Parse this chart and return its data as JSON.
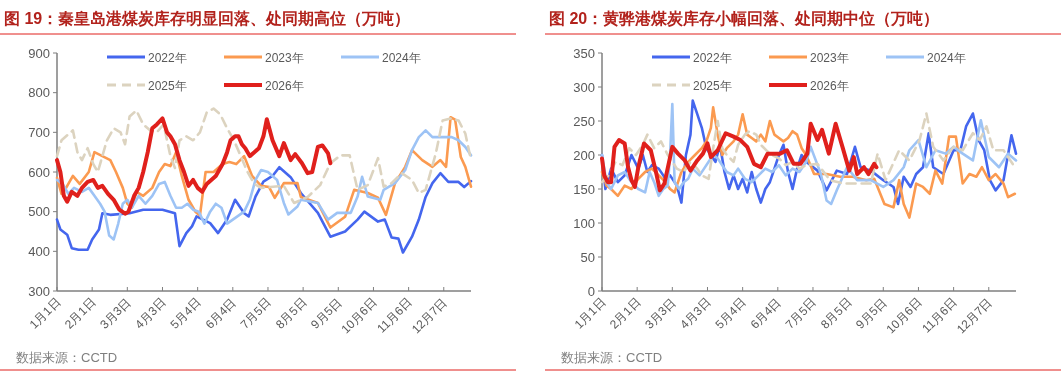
{
  "chart_data": [
    {
      "type": "line",
      "title": "图 19：秦皇岛港煤炭库存明显回落、处同期高位（万吨）",
      "annotations": [
        "数据来源：CCTD"
      ],
      "legend": "top",
      "grid": false,
      "xlim": [
        "--01-01",
        "--12-31"
      ],
      "xticks": [
        {
          "value": "--01-01",
          "label": "1月1日"
        },
        {
          "value": "--02-01",
          "label": "2月1日"
        },
        {
          "value": "--03-03",
          "label": "3月3日"
        },
        {
          "value": "--04-03",
          "label": "4月3日"
        },
        {
          "value": "--05-04",
          "label": "5月4日"
        },
        {
          "value": "--06-04",
          "label": "6月4日"
        },
        {
          "value": "--07-05",
          "label": "7月5日"
        },
        {
          "value": "--08-05",
          "label": "8月5日"
        },
        {
          "value": "--09-05",
          "label": "9月5日"
        },
        {
          "value": "--10-06",
          "label": "10月6日"
        },
        {
          "value": "--11-06",
          "label": "11月6日"
        },
        {
          "value": "--12-07",
          "label": "12月7日"
        }
      ],
      "ylim": [
        300,
        900
      ],
      "yticks": [
        300,
        400,
        500,
        600,
        700,
        800,
        900
      ],
      "series": [
        {
          "name": "2022年",
          "color": "#4466ee",
          "x": [
            "--01-01",
            "--01-04",
            "--01-10",
            "--01-14",
            "--01-20",
            "--01-28",
            "--02-01",
            "--02-07",
            "--02-10",
            "--02-17",
            "--03-05",
            "--03-17",
            "--04-03",
            "--04-14",
            "--04-18",
            "--04-24",
            "--04-29",
            "--05-03",
            "--05-15",
            "--05-22",
            "--05-30",
            "--06-06",
            "--06-14",
            "--06-18",
            "--06-24",
            "--07-01",
            "--07-09",
            "--07-15",
            "--07-25",
            "--08-03",
            "--08-18",
            "--08-29",
            "--09-11",
            "--09-22",
            "--09-28",
            "--10-10",
            "--10-16",
            "--10-22",
            "--10-28",
            "--11-01",
            "--11-09",
            "--11-15",
            "--11-21",
            "--11-27",
            "--12-04",
            "--12-11",
            "--12-20",
            "--12-25",
            "--12-31"
          ],
          "values": [
            480,
            455,
            442,
            408,
            404,
            404,
            430,
            455,
            496,
            492,
            496,
            505,
            505,
            496,
            413,
            446,
            463,
            488,
            471,
            446,
            480,
            530,
            496,
            488,
            538,
            576,
            590,
            612,
            587,
            547,
            497,
            437,
            450,
            480,
            500,
            475,
            480,
            435,
            432,
            397,
            437,
            480,
            537,
            572,
            597,
            575,
            575,
            562,
            577
          ]
        },
        {
          "name": "2023年",
          "color": "#fb9a50",
          "x": [
            "--01-01",
            "--01-05",
            "--01-09",
            "--01-15",
            "--01-21",
            "--01-29",
            "--02-03",
            "--02-10",
            "--02-17",
            "--02-22",
            "--02-28",
            "--03-03",
            "--03-07",
            "--03-11",
            "--03-17",
            "--03-25",
            "--03-31",
            "--04-05",
            "--04-10",
            "--04-15",
            "--04-20",
            "--04-26",
            "--05-02",
            "--05-06",
            "--05-11",
            "--05-18",
            "--05-26",
            "--06-01",
            "--06-07",
            "--06-14",
            "--06-21",
            "--06-29",
            "--07-06",
            "--07-11",
            "--07-19",
            "--07-31",
            "--08-03",
            "--08-18",
            "--08-29",
            "--09-11",
            "--09-19",
            "--10-01",
            "--10-10",
            "--10-17",
            "--10-25",
            "--11-03",
            "--11-09",
            "--11-18",
            "--11-27",
            "--12-04",
            "--12-09",
            "--12-13",
            "--12-17",
            "--12-22",
            "--12-26",
            "--12-31"
          ],
          "values": [
            585,
            545,
            560,
            590,
            570,
            600,
            650,
            640,
            630,
            600,
            560,
            520,
            510,
            550,
            540,
            560,
            600,
            620,
            615,
            650,
            590,
            530,
            500,
            490,
            600,
            600,
            620,
            625,
            620,
            640,
            590,
            565,
            562,
            535,
            572,
            572,
            537,
            522,
            460,
            487,
            555,
            547,
            535,
            492,
            572,
            613,
            655,
            630,
            613,
            630,
            613,
            738,
            732,
            638,
            613,
            563
          ]
        },
        {
          "name": "2024年",
          "color": "#9dc3f5",
          "x": [
            "--01-01",
            "--01-06",
            "--01-11",
            "--01-16",
            "--01-23",
            "--01-29",
            "--02-03",
            "--02-08",
            "--02-12",
            "--02-16",
            "--02-20",
            "--02-24",
            "--02-28",
            "--03-03",
            "--03-07",
            "--03-13",
            "--03-19",
            "--03-25",
            "--03-31",
            "--04-05",
            "--04-10",
            "--04-15",
            "--04-20",
            "--04-25",
            "--04-30",
            "--05-05",
            "--05-10",
            "--05-15",
            "--05-20",
            "--05-25",
            "--05-30",
            "--06-04",
            "--06-09",
            "--06-14",
            "--06-19",
            "--06-24",
            "--06-29",
            "--07-05",
            "--07-13",
            "--07-19",
            "--07-23",
            "--07-31",
            "--08-03",
            "--08-18",
            "--08-27",
            "--09-04",
            "--09-16",
            "--09-22",
            "--09-26",
            "--10-01",
            "--10-12",
            "--10-15",
            "--10-25",
            "--11-03",
            "--11-09",
            "--11-15",
            "--11-21",
            "--11-27",
            "--12-05",
            "--12-14",
            "--12-20",
            "--12-26",
            "--12-31"
          ],
          "values": [
            580,
            570,
            545,
            560,
            550,
            560,
            540,
            520,
            500,
            440,
            430,
            470,
            520,
            530,
            510,
            540,
            520,
            540,
            570,
            575,
            540,
            510,
            510,
            520,
            505,
            500,
            470,
            500,
            520,
            510,
            470,
            480,
            490,
            500,
            530,
            580,
            605,
            600,
            580,
            522,
            493,
            513,
            530,
            522,
            480,
            497,
            497,
            538,
            588,
            538,
            530,
            555,
            572,
            605,
            655,
            688,
            705,
            688,
            688,
            688,
            680,
            663,
            642
          ]
        },
        {
          "name": "2025年",
          "color": "#dcd3bf",
          "line_style": "dashed",
          "x": [
            "--01-01",
            "--01-05",
            "--01-09",
            "--01-15",
            "--01-19",
            "--01-23",
            "--01-28",
            "--02-02",
            "--02-06",
            "--02-10",
            "--02-14",
            "--02-20",
            "--02-26",
            "--03-01",
            "--03-05",
            "--03-11",
            "--03-17",
            "--03-23",
            "--03-29",
            "--04-04",
            "--04-10",
            "--04-14",
            "--04-18",
            "--04-24",
            "--04-30",
            "--05-06",
            "--05-12",
            "--05-18",
            "--05-24",
            "--05-30",
            "--06-05",
            "--06-11",
            "--06-17",
            "--06-23",
            "--06-29",
            "--07-07",
            "--07-19",
            "--07-28",
            "--08-09",
            "--08-20",
            "--08-29",
            "--09-07",
            "--09-15",
            "--09-22",
            "--10-01",
            "--10-10",
            "--10-15",
            "--10-22",
            "--10-31",
            "--11-09",
            "--11-15",
            "--11-21",
            "--11-30",
            "--12-06",
            "--12-13",
            "--12-20",
            "--12-26",
            "--12-31"
          ],
          "values": [
            640,
            680,
            690,
            705,
            650,
            630,
            660,
            620,
            600,
            640,
            680,
            710,
            700,
            670,
            740,
            755,
            720,
            705,
            700,
            720,
            640,
            610,
            680,
            690,
            680,
            700,
            750,
            760,
            745,
            710,
            680,
            640,
            600,
            570,
            560,
            562,
            565,
            522,
            537,
            567,
            622,
            642,
            642,
            555,
            567,
            635,
            563,
            572,
            597,
            580,
            547,
            555,
            647,
            730,
            735,
            730,
            697,
            630
          ]
        },
        {
          "name": "2026年",
          "color": "#e0201c",
          "x": [
            "--01-01",
            "--01-04",
            "--01-07",
            "--01-10",
            "--01-14",
            "--01-19",
            "--01-23",
            "--01-28",
            "--02-02",
            "--02-06",
            "--02-10",
            "--02-15",
            "--02-20",
            "--02-25",
            "--03-01",
            "--03-04",
            "--03-09",
            "--03-13",
            "--03-17",
            "--03-21",
            "--03-25",
            "--03-29",
            "--04-03",
            "--04-07",
            "--04-10",
            "--04-14",
            "--04-18",
            "--04-22",
            "--04-26",
            "--04-30",
            "--05-04",
            "--05-08",
            "--05-12",
            "--05-16",
            "--05-20",
            "--05-26",
            "--05-30",
            "--06-02",
            "--06-06",
            "--06-09",
            "--06-12",
            "--06-15",
            "--06-19",
            "--06-23",
            "--06-27",
            "--07-01",
            "--07-04",
            "--07-09",
            "--07-15",
            "--07-19",
            "--07-25",
            "--07-29",
            "--08-04",
            "--08-09",
            "--08-13",
            "--08-18",
            "--08-22",
            "--08-27",
            "--08-29"
          ],
          "values": [
            630,
            600,
            540,
            525,
            550,
            540,
            560,
            575,
            580,
            560,
            565,
            545,
            530,
            505,
            495,
            500,
            540,
            560,
            600,
            650,
            710,
            720,
            735,
            700,
            690,
            670,
            630,
            600,
            565,
            580,
            560,
            550,
            570,
            580,
            590,
            620,
            650,
            680,
            690,
            690,
            670,
            660,
            640,
            650,
            660,
            690,
            733,
            680,
            640,
            673,
            630,
            645,
            622,
            597,
            600,
            663,
            667,
            647,
            622
          ]
        }
      ]
    },
    {
      "type": "line",
      "title": "图 20：黄骅港煤炭库存小幅回落、处同期中位（万吨）",
      "annotations": [
        "数据来源：CCTD"
      ],
      "legend": "top",
      "grid": false,
      "xlim": [
        "--01-01",
        "--12-31"
      ],
      "xticks": [
        {
          "value": "--01-01",
          "label": "1月1日"
        },
        {
          "value": "--02-01",
          "label": "2月1日"
        },
        {
          "value": "--03-03",
          "label": "3月3日"
        },
        {
          "value": "--04-03",
          "label": "4月3日"
        },
        {
          "value": "--05-04",
          "label": "5月4日"
        },
        {
          "value": "--06-04",
          "label": "6月4日"
        },
        {
          "value": "--07-05",
          "label": "7月5日"
        },
        {
          "value": "--08-05",
          "label": "8月5日"
        },
        {
          "value": "--09-05",
          "label": "9月5日"
        },
        {
          "value": "--10-06",
          "label": "10月6日"
        },
        {
          "value": "--11-06",
          "label": "11月6日"
        },
        {
          "value": "--12-07",
          "label": "12月7日"
        }
      ],
      "ylim": [
        0,
        350
      ],
      "yticks": [
        0,
        50,
        100,
        150,
        200,
        250,
        300,
        350
      ],
      "series": [
        {
          "name": "2022年",
          "color": "#4466ee",
          "x": [
            "--01-01",
            "--01-04",
            "--01-09",
            "--01-15",
            "--01-21",
            "--01-27",
            "--02-02",
            "--02-06",
            "--02-10",
            "--02-14",
            "--02-20",
            "--02-26",
            "--03-01",
            "--03-07",
            "--03-11",
            "--03-15",
            "--03-19",
            "--03-21",
            "--03-25",
            "--03-29",
            "--04-02",
            "--04-06",
            "--04-10",
            "--04-14",
            "--04-18",
            "--04-22",
            "--04-26",
            "--04-30",
            "--05-04",
            "--05-08",
            "--05-12",
            "--05-16",
            "--05-20",
            "--05-24",
            "--05-28",
            "--06-01",
            "--06-05",
            "--06-09",
            "--06-13",
            "--06-17",
            "--06-21",
            "--06-25",
            "--06-29",
            "--07-09",
            "--07-17",
            "--07-26",
            "--08-04",
            "--08-11",
            "--08-16",
            "--08-25",
            "--09-05",
            "--09-14",
            "--09-18",
            "--09-23",
            "--09-29",
            "--10-04",
            "--10-10",
            "--10-15",
            "--10-19",
            "--10-28",
            "--11-06",
            "--11-12",
            "--11-17",
            "--11-23",
            "--11-28",
            "--12-03",
            "--12-08",
            "--12-13",
            "--12-20",
            "--12-27",
            "--12-31"
          ],
          "values": [
            200,
            150,
            180,
            160,
            170,
            200,
            180,
            200,
            175,
            185,
            180,
            165,
            170,
            155,
            130,
            200,
            230,
            280,
            260,
            240,
            210,
            200,
            190,
            215,
            175,
            150,
            170,
            150,
            165,
            145,
            175,
            150,
            130,
            150,
            160,
            180,
            200,
            215,
            175,
            150,
            180,
            200,
            190,
            177,
            148,
            177,
            172,
            212,
            182,
            177,
            163,
            153,
            128,
            168,
            153,
            172,
            182,
            232,
            182,
            172,
            207,
            207,
            242,
            261,
            222,
            207,
            163,
            148,
            163,
            229,
            202
          ]
        },
        {
          "name": "2023年",
          "color": "#fb9a50",
          "x": [
            "--01-01",
            "--01-05",
            "--01-09",
            "--01-15",
            "--01-21",
            "--01-27",
            "--02-02",
            "--02-08",
            "--02-14",
            "--02-20",
            "--02-26",
            "--03-01",
            "--03-05",
            "--03-11",
            "--03-17",
            "--03-23",
            "--03-29",
            "--04-02",
            "--04-06",
            "--04-08",
            "--04-12",
            "--04-16",
            "--04-20",
            "--04-26",
            "--04-30",
            "--05-04",
            "--05-08",
            "--05-12",
            "--05-16",
            "--05-20",
            "--05-24",
            "--05-28",
            "--06-01",
            "--06-05",
            "--06-09",
            "--06-13",
            "--06-17",
            "--06-21",
            "--06-25",
            "--06-29",
            "--07-06",
            "--07-17",
            "--07-29",
            "--08-09",
            "--08-21",
            "--08-28",
            "--09-06",
            "--09-14",
            "--09-19",
            "--09-23",
            "--09-28",
            "--10-04",
            "--10-10",
            "--10-16",
            "--10-21",
            "--10-27",
            "--11-02",
            "--11-08",
            "--11-14",
            "--11-20",
            "--11-26",
            "--12-01",
            "--12-07",
            "--12-13",
            "--12-20",
            "--12-24",
            "--12-30"
          ],
          "values": [
            175,
            155,
            150,
            140,
            155,
            150,
            165,
            175,
            180,
            170,
            160,
            150,
            145,
            175,
            190,
            200,
            210,
            220,
            240,
            270,
            230,
            200,
            210,
            220,
            230,
            260,
            230,
            225,
            220,
            230,
            220,
            250,
            230,
            225,
            220,
            225,
            235,
            230,
            210,
            200,
            172,
            172,
            168,
            168,
            163,
            165,
            128,
            123,
            163,
            128,
            108,
            158,
            153,
            143,
            177,
            158,
            227,
            227,
            158,
            172,
            168,
            182,
            163,
            172,
            158,
            138,
            143
          ]
        },
        {
          "name": "2024年",
          "color": "#9dc3f5",
          "x": [
            "--01-01",
            "--01-05",
            "--01-09",
            "--01-15",
            "--01-21",
            "--01-27",
            "--02-02",
            "--02-08",
            "--02-12",
            "--02-16",
            "--02-20",
            "--02-24",
            "--02-28",
            "--03-01",
            "--03-03",
            "--03-05",
            "--03-09",
            "--03-13",
            "--03-17",
            "--03-21",
            "--03-27",
            "--03-31",
            "--04-04",
            "--04-08",
            "--04-12",
            "--04-16",
            "--04-20",
            "--04-26",
            "--04-30",
            "--05-06",
            "--05-12",
            "--05-18",
            "--05-24",
            "--05-30",
            "--06-05",
            "--06-11",
            "--06-17",
            "--06-23",
            "--06-29",
            "--07-03",
            "--07-12",
            "--07-17",
            "--07-21",
            "--07-26",
            "--08-04",
            "--08-13",
            "--08-25",
            "--09-05",
            "--09-14",
            "--09-23",
            "--09-28",
            "--10-06",
            "--10-13",
            "--10-21",
            "--10-30",
            "--11-06",
            "--11-14",
            "--11-23",
            "--11-30",
            "--12-07",
            "--12-16",
            "--12-24",
            "--12-31"
          ],
          "values": [
            200,
            160,
            150,
            170,
            175,
            160,
            150,
            145,
            175,
            160,
            140,
            150,
            155,
            200,
            275,
            160,
            150,
            160,
            165,
            180,
            170,
            180,
            190,
            200,
            195,
            185,
            175,
            170,
            180,
            165,
            160,
            170,
            180,
            175,
            185,
            170,
            180,
            175,
            190,
            212,
            172,
            133,
            128,
            148,
            182,
            163,
            163,
            153,
            163,
            182,
            207,
            222,
            182,
            207,
            202,
            212,
            202,
            192,
            251,
            197,
            182,
            202,
            192
          ]
        },
        {
          "name": "2025年",
          "color": "#dcd3bf",
          "line_style": "dashed",
          "x": [
            "--01-01",
            "--01-07",
            "--01-13",
            "--01-19",
            "--01-25",
            "--01-31",
            "--02-06",
            "--02-10",
            "--02-16",
            "--02-22",
            "--02-28",
            "--03-03",
            "--03-07",
            "--03-13",
            "--03-19",
            "--03-25",
            "--03-29",
            "--04-04",
            "--04-08",
            "--04-12",
            "--04-16",
            "--04-20",
            "--04-26",
            "--04-30",
            "--05-06",
            "--05-10",
            "--05-16",
            "--05-20",
            "--05-26",
            "--05-30",
            "--06-05",
            "--06-11",
            "--06-17",
            "--06-23",
            "--06-29",
            "--07-09",
            "--07-20",
            "--08-01",
            "--08-13",
            "--08-25",
            "--08-31",
            "--09-07",
            "--09-19",
            "--09-28",
            "--10-07",
            "--10-13",
            "--10-19",
            "--10-28",
            "--11-06",
            "--11-14",
            "--11-23",
            "--11-29",
            "--12-05",
            "--12-11",
            "--12-20",
            "--12-24",
            "--12-30"
          ],
          "values": [
            160,
            170,
            190,
            185,
            210,
            200,
            215,
            230,
            210,
            220,
            200,
            190,
            180,
            175,
            190,
            180,
            170,
            165,
            210,
            250,
            210,
            200,
            190,
            215,
            230,
            235,
            230,
            215,
            205,
            200,
            195,
            185,
            190,
            180,
            185,
            187,
            163,
            158,
            158,
            158,
            202,
            163,
            207,
            192,
            222,
            261,
            212,
            192,
            212,
            207,
            232,
            222,
            242,
            207,
            207,
            197,
            182
          ]
        },
        {
          "name": "2026年",
          "color": "#e0201c",
          "x": [
            "--01-01",
            "--01-03",
            "--01-06",
            "--01-09",
            "--01-12",
            "--01-16",
            "--01-21",
            "--01-24",
            "--01-27",
            "--01-30",
            "--02-02",
            "--02-07",
            "--02-13",
            "--02-18",
            "--02-21",
            "--02-25",
            "--03-03",
            "--03-08",
            "--03-14",
            "--03-19",
            "--03-25",
            "--03-30",
            "--04-03",
            "--04-06",
            "--04-12",
            "--04-19",
            "--04-26",
            "--05-02",
            "--05-08",
            "--05-14",
            "--05-20",
            "--05-26",
            "--05-31",
            "--06-06",
            "--06-12",
            "--06-18",
            "--06-24",
            "--06-30",
            "--07-03",
            "--07-09",
            "--07-13",
            "--07-19",
            "--07-25",
            "--07-31",
            "--08-06",
            "--08-10",
            "--08-13",
            "--08-19",
            "--08-23",
            "--08-28",
            "--08-30"
          ],
          "values": [
            195,
            170,
            160,
            160,
            212,
            222,
            217,
            182,
            163,
            153,
            182,
            217,
            207,
            172,
            148,
            158,
            212,
            202,
            192,
            177,
            192,
            202,
            217,
            197,
            207,
            232,
            227,
            222,
            212,
            187,
            182,
            202,
            202,
            202,
            207,
            187,
            187,
            202,
            246,
            222,
            237,
            202,
            246,
            212,
            177,
            197,
            172,
            182,
            172,
            187,
            182
          ]
        }
      ]
    }
  ]
}
